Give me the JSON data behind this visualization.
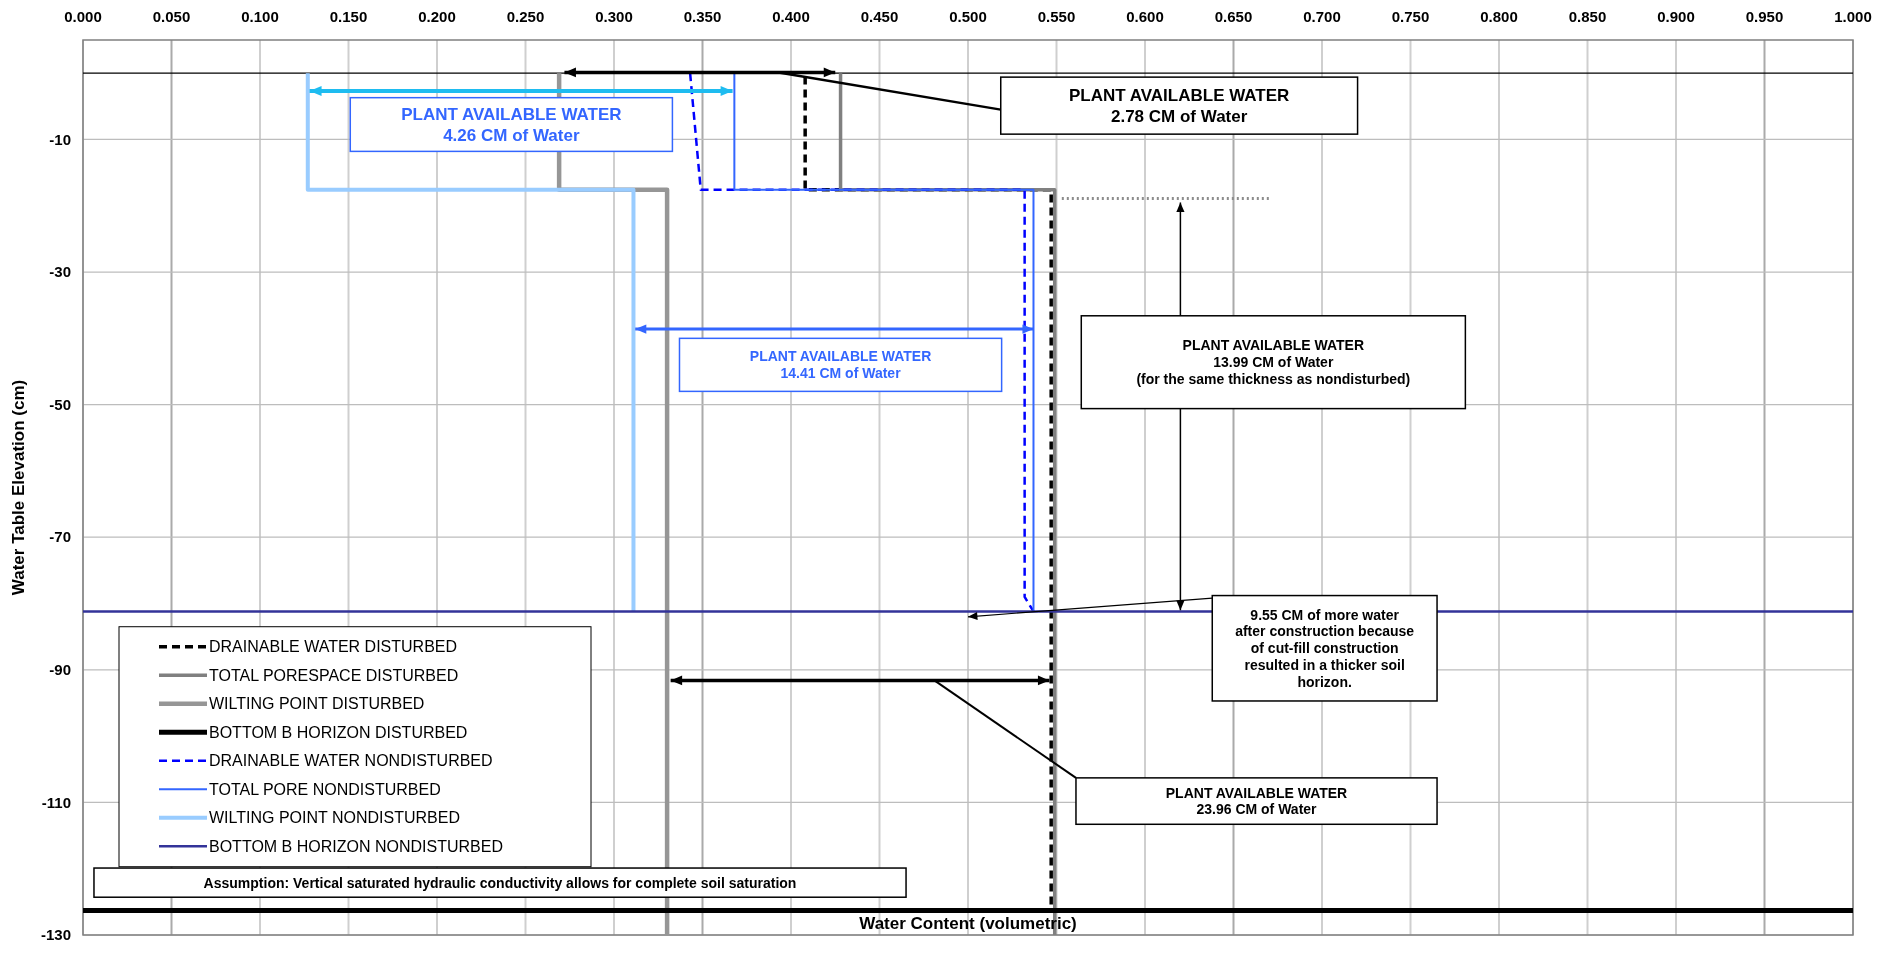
{
  "chart_data": {
    "type": "line",
    "xlabel": "Water Content (volumetric)",
    "ylabel": "Water Table Elevation (cm)",
    "xlim": [
      0,
      1
    ],
    "ylim": [
      -130,
      5
    ],
    "xticks": [
      {
        "value": 0,
        "label": "0.000"
      },
      {
        "value": 0.05,
        "label": "0.050"
      },
      {
        "value": 0.1,
        "label": "0.100"
      },
      {
        "value": 0.15,
        "label": "0.150"
      },
      {
        "value": 0.2,
        "label": "0.200"
      },
      {
        "value": 0.25,
        "label": "0.250"
      },
      {
        "value": 0.3,
        "label": "0.300"
      },
      {
        "value": 0.35,
        "label": "0.350"
      },
      {
        "value": 0.4,
        "label": "0.400"
      },
      {
        "value": 0.45,
        "label": "0.450"
      },
      {
        "value": 0.5,
        "label": "0.500"
      },
      {
        "value": 0.55,
        "label": "0.550"
      },
      {
        "value": 0.6,
        "label": "0.600"
      },
      {
        "value": 0.65,
        "label": "0.650"
      },
      {
        "value": 0.7,
        "label": "0.700"
      },
      {
        "value": 0.75,
        "label": "0.750"
      },
      {
        "value": 0.8,
        "label": "0.800"
      },
      {
        "value": 0.85,
        "label": "0.850"
      },
      {
        "value": 0.9,
        "label": "0.900"
      },
      {
        "value": 0.95,
        "label": "0.950"
      },
      {
        "value": 1,
        "label": "1.000"
      }
    ],
    "yticks": [
      -10,
      -30,
      -50,
      -70,
      -90,
      -110,
      -130
    ],
    "grid": true,
    "legend": "bottom left",
    "line_style": "solid",
    "ref_lines": [
      {
        "axis": "y",
        "value": 0,
        "color": "#000000"
      }
    ],
    "series": [
      {
        "name": "DRAINABLE WATER DISTURBED",
        "color": "#000000",
        "line_style": "dashed",
        "x": [
          0.408,
          0.408,
          0.547,
          0.547
        ],
        "values": [
          -0.5,
          -17.6,
          -17.6,
          -126.3
        ]
      },
      {
        "name": "TOTAL PORESPACE DISTURBED",
        "color": "#808080",
        "x": [
          0.428,
          0.428,
          0.549,
          0.549
        ],
        "values": [
          0,
          -17.6,
          -17.6,
          -130
        ]
      },
      {
        "name": "WILTING POINT DISTURBED",
        "color": "#969696",
        "x": [
          0.269,
          0.269,
          0.33,
          0.33
        ],
        "values": [
          0,
          -17.6,
          -17.6,
          -130
        ]
      },
      {
        "name": "BOTTOM B HORIZON DISTURBED",
        "color": "#000000",
        "x": [
          0,
          1
        ],
        "values": [
          -126.3,
          -126.3
        ]
      },
      {
        "name": "DRAINABLE WATER NONDISTURBED",
        "color": "#0000ff",
        "line_style": "dashed",
        "x": [
          0.343,
          0.349,
          0.532,
          0.532,
          0.537
        ],
        "values": [
          0,
          -17.6,
          -17.6,
          -79,
          -81.2
        ]
      },
      {
        "name": "TOTAL PORE NONDISTURBED",
        "color": "#3366ff",
        "x": [
          0.368,
          0.368,
          0.537,
          0.537
        ],
        "values": [
          0,
          -17.6,
          -17.6,
          -81.2
        ]
      },
      {
        "name": "WILTING POINT NONDISTURBED",
        "color": "#99ccff",
        "x": [
          0.127,
          0.127,
          0.311,
          0.311
        ],
        "values": [
          0,
          -17.6,
          -17.6,
          -81.2
        ]
      },
      {
        "name": "BOTTOM B HORIZON NONDISTURBED",
        "color": "#333399",
        "x": [
          0,
          1
        ],
        "values": [
          -81.2,
          -81.2
        ]
      },
      {
        "color": "#8c8c8c",
        "line_style": "dotted",
        "x": [
          0.553,
          0.67
        ],
        "values": [
          -18.9,
          -18.9
        ]
      }
    ],
    "annotations": [
      "PLANT AVAILABLE WATER\n2.78 CM of Water",
      "PLANT AVAILABLE WATER\n4.26 CM of Water",
      "PLANT AVAILABLE WATER\n14.41 CM of Water",
      "PLANT AVAILABLE WATER\n13.99 CM of Water\n(for the same thickness as nondisturbed)",
      "9.55 CM of more water\nafter construction because\nof cut-fill construction\nresulted in a thicker soil\nhorizon.",
      "PLANT AVAILABLE WATER\n23.96 CM of Water",
      "Assumption: Vertical saturated hydraulic conductivity allows for complete soil saturation"
    ]
  }
}
